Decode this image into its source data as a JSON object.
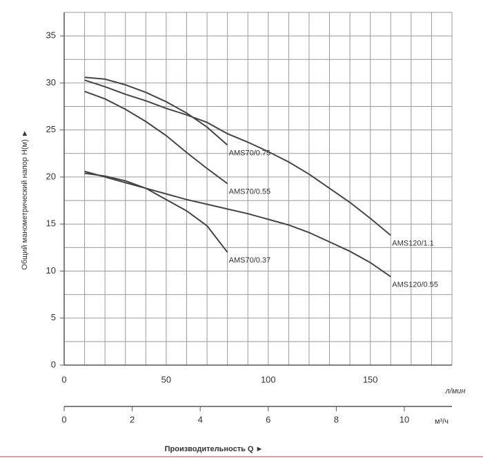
{
  "chart_data": {
    "type": "line",
    "y_label": "Общий манометрический напор  H(м)  ►",
    "x_label": "Производительность Q  ►",
    "x_unit": "л/мин",
    "x2_unit": "м³/ч",
    "x": [
      10,
      20,
      30,
      40,
      50,
      60,
      70,
      80,
      90,
      100,
      110,
      120,
      130,
      140,
      150,
      160
    ],
    "xlim": [
      0,
      190
    ],
    "xticks": [
      0,
      50,
      100,
      150
    ],
    "xgrid": [
      0,
      10,
      20,
      30,
      40,
      50,
      60,
      70,
      80,
      90,
      100,
      110,
      120,
      130,
      140,
      150,
      160,
      170,
      180,
      190
    ],
    "x2lim": [
      0,
      11.4
    ],
    "x2ticks": [
      0,
      2,
      4,
      6,
      8,
      10
    ],
    "ylim": [
      0,
      37.5
    ],
    "yticks": [
      0,
      5,
      10,
      15,
      20,
      25,
      30,
      35
    ],
    "ygrid": [
      0,
      2.5,
      5,
      7.5,
      10,
      12.5,
      15,
      17.5,
      20,
      22.5,
      25,
      27.5,
      30,
      32.5,
      35,
      37.5
    ],
    "grid": true,
    "series": [
      {
        "name": "AMS70/0.75",
        "color": "#444444",
        "values": [
          30.6,
          30.4,
          29.8,
          29,
          28,
          26.8,
          25.3,
          23.4,
          null,
          null,
          null,
          null,
          null,
          null,
          null,
          null
        ]
      },
      {
        "name": "AMS70/0.55",
        "color": "#444444",
        "values": [
          29.1,
          28.3,
          27.2,
          25.9,
          24.4,
          22.6,
          20.9,
          19.3,
          null,
          null,
          null,
          null,
          null,
          null,
          null,
          null
        ]
      },
      {
        "name": "AMS120/1.1",
        "color": "#444444",
        "values": [
          30.3,
          29.6,
          28.8,
          28.1,
          27.3,
          26.6,
          25.8,
          24.6,
          23.7,
          22.7,
          21.6,
          20.3,
          18.8,
          17.3,
          15.6,
          13.8
        ]
      },
      {
        "name": "AMS70/0.37",
        "color": "#444444",
        "values": [
          20.4,
          20.1,
          19.6,
          18.8,
          17.6,
          16.4,
          14.8,
          12,
          null,
          null,
          null,
          null,
          null,
          null,
          null,
          null
        ]
      },
      {
        "name": "AMS120/0.55",
        "color": "#444444",
        "values": [
          20.6,
          20,
          19.4,
          18.8,
          18.2,
          17.6,
          17.1,
          16.6,
          16.1,
          15.5,
          14.9,
          14.1,
          13.1,
          12.1,
          10.9,
          9.4
        ]
      }
    ]
  }
}
